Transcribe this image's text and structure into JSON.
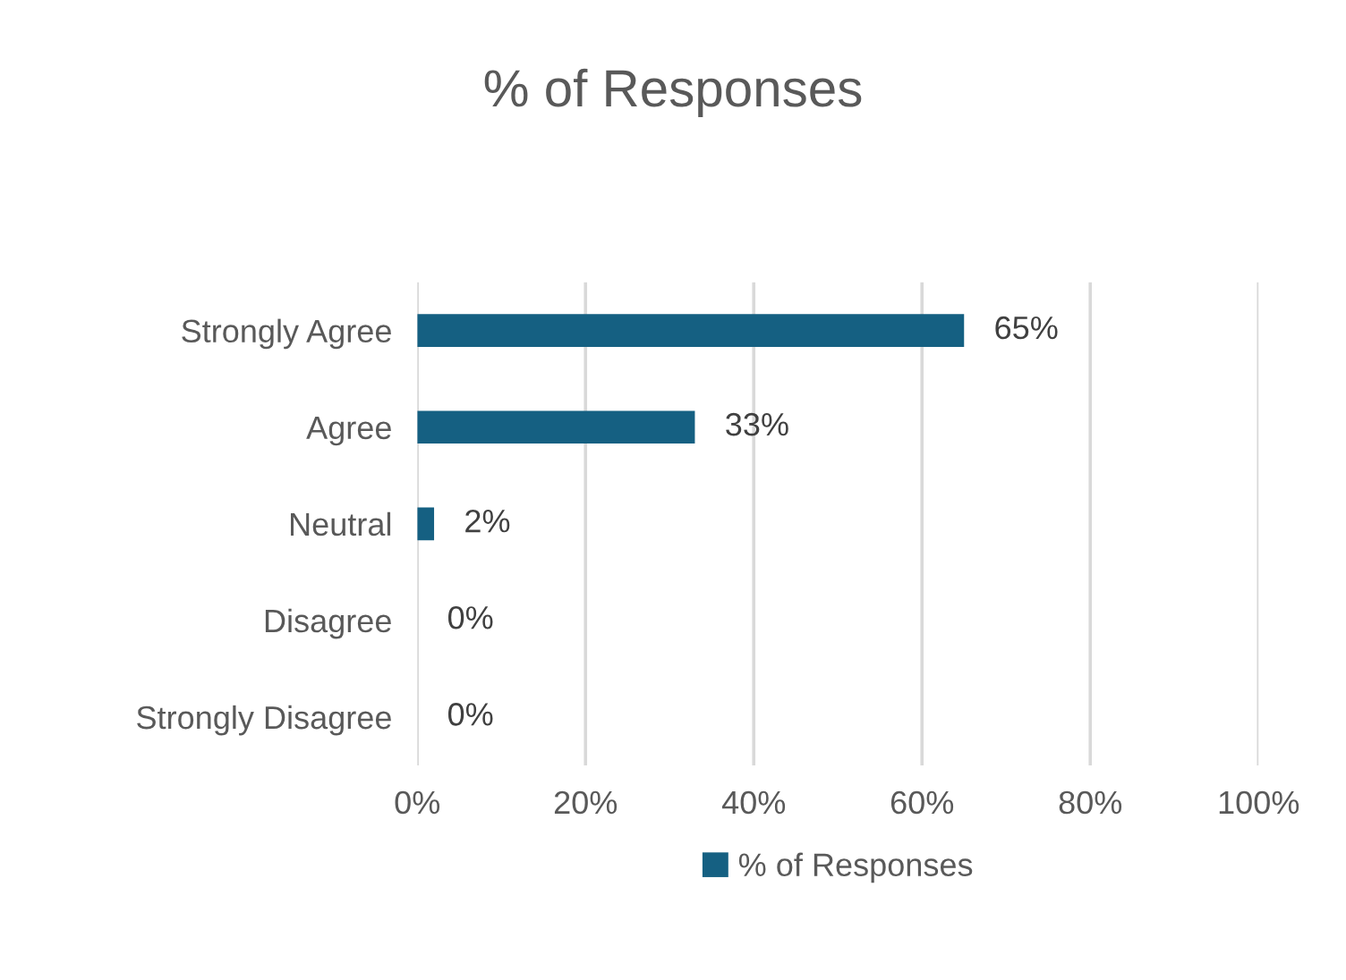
{
  "chart_data": {
    "type": "bar",
    "orientation": "horizontal",
    "title": "% of Responses",
    "categories": [
      "Strongly Agree",
      "Agree",
      "Neutral",
      "Disagree",
      "Strongly Disagree"
    ],
    "series": [
      {
        "name": "% of Responses",
        "color": "#156082",
        "values": [
          65,
          33,
          2,
          0,
          0
        ],
        "value_labels": [
          "65%",
          "33%",
          "2%",
          "0%",
          "0%"
        ]
      }
    ],
    "xlim": [
      0,
      100
    ],
    "xticks": [
      {
        "value": 0,
        "label": "0%"
      },
      {
        "value": 20,
        "label": "20%"
      },
      {
        "value": 40,
        "label": "40%"
      },
      {
        "value": 60,
        "label": "60%"
      },
      {
        "value": 80,
        "label": "80%"
      },
      {
        "value": 100,
        "label": "100%"
      }
    ],
    "grid": "x",
    "legend": "bottom"
  }
}
